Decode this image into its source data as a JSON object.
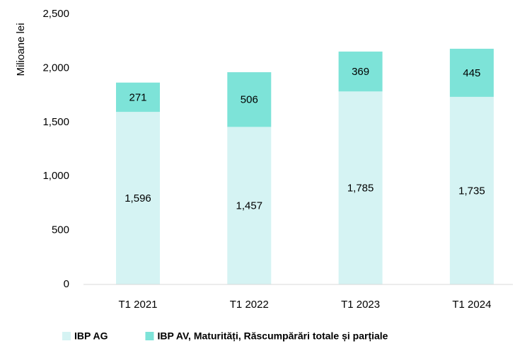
{
  "chart_data": {
    "type": "stacked_bar",
    "y_label": "Milioane lei",
    "categories": [
      "T1 2021",
      "T1 2022",
      "T1 2023",
      "T1 2024"
    ],
    "series": [
      {
        "name": "IBP AG",
        "color": "#d5f3f3",
        "values": [
          1596,
          1457,
          1785,
          1735
        ],
        "value_labels": [
          "1,596",
          "1,457",
          "1,785",
          "1,735"
        ]
      },
      {
        "name": "IBP AV, Maturități, Răscumpărări totale și parțiale",
        "color": "#7de3d8",
        "values": [
          271,
          506,
          369,
          445
        ]
      }
    ],
    "ylim": [
      0,
      2500
    ],
    "yticks": [
      0,
      500,
      {
        "value": 1000,
        "label": "1,000"
      },
      {
        "value": 1500,
        "label": "1,500"
      },
      {
        "value": 2000,
        "label": "2,000"
      },
      {
        "value": 2500,
        "label": "2,500"
      }
    ],
    "grid": false,
    "legend": "bottom"
  }
}
